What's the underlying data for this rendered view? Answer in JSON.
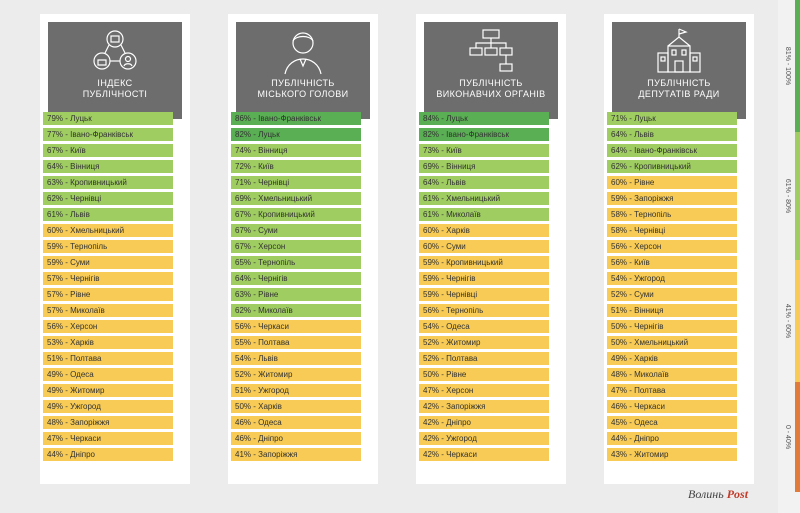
{
  "chart_data": [
    {
      "type": "table",
      "title": "ІНДЕКС\nПУБЛІЧНОСТІ",
      "rows": [
        {
          "label": "79% - Луцьк",
          "value": 79
        },
        {
          "label": "77% - Івано-Франківськ",
          "value": 77
        },
        {
          "label": "67% - Київ",
          "value": 67
        },
        {
          "label": "64% - Вінниця",
          "value": 64
        },
        {
          "label": "63% - Кропивницький",
          "value": 63
        },
        {
          "label": "62% - Чернівці",
          "value": 62
        },
        {
          "label": "61% - Львів",
          "value": 61
        },
        {
          "label": "60% - Хмельницький",
          "value": 60
        },
        {
          "label": "59% - Тернопіль",
          "value": 59
        },
        {
          "label": "59% - Суми",
          "value": 59
        },
        {
          "label": "57% - Чернігів",
          "value": 57
        },
        {
          "label": "57% - Рівне",
          "value": 57
        },
        {
          "label": "57% - Миколаїв",
          "value": 57
        },
        {
          "label": "56% - Херсон",
          "value": 56
        },
        {
          "label": "53% - Харків",
          "value": 53
        },
        {
          "label": "51% - Полтава",
          "value": 51
        },
        {
          "label": "49% - Одеса",
          "value": 49
        },
        {
          "label": "49% - Житомир",
          "value": 49
        },
        {
          "label": "49% - Ужгород",
          "value": 49
        },
        {
          "label": "48% - Запоріжжя",
          "value": 48
        },
        {
          "label": "47% - Черкаси",
          "value": 47
        },
        {
          "label": "44% - Дніпро",
          "value": 44
        }
      ]
    },
    {
      "type": "table",
      "title": "ПУБЛІЧНІСТЬ\nМІСЬКОГО ГОЛОВИ",
      "rows": [
        {
          "label": "86% - Івано-Франківськ",
          "value": 86
        },
        {
          "label": "82% - Луцьк",
          "value": 82
        },
        {
          "label": "74% - Вінниця",
          "value": 74
        },
        {
          "label": "72% - Київ",
          "value": 72
        },
        {
          "label": "71% - Чернівці",
          "value": 71
        },
        {
          "label": "69% - Хмельницький",
          "value": 69
        },
        {
          "label": "67% - Кропивницький",
          "value": 67
        },
        {
          "label": "67% - Суми",
          "value": 67
        },
        {
          "label": "67% - Херсон",
          "value": 67
        },
        {
          "label": "65% - Тернопіль",
          "value": 65
        },
        {
          "label": "64% - Чернігів",
          "value": 64
        },
        {
          "label": "63% - Рівне",
          "value": 63
        },
        {
          "label": "62% - Миколаїв",
          "value": 62
        },
        {
          "label": "56% - Черкаси",
          "value": 56
        },
        {
          "label": "55% - Полтава",
          "value": 55
        },
        {
          "label": "54% - Львів",
          "value": 54
        },
        {
          "label": "52% - Житомир",
          "value": 52
        },
        {
          "label": "51% - Ужгород",
          "value": 51
        },
        {
          "label": "50% - Харків",
          "value": 50
        },
        {
          "label": "46% - Одеса",
          "value": 46
        },
        {
          "label": "46% - Дніпро",
          "value": 46
        },
        {
          "label": "41% - Запоріжжя",
          "value": 41
        }
      ]
    },
    {
      "type": "table",
      "title": "ПУБЛІЧНІСТЬ\nВИКОНАВЧИХ ОРГАНІВ",
      "rows": [
        {
          "label": "84% - Луцьк",
          "value": 84
        },
        {
          "label": "82% - Івано-Франківськ",
          "value": 82
        },
        {
          "label": "73% - Київ",
          "value": 73
        },
        {
          "label": "69% - Вінниця",
          "value": 69
        },
        {
          "label": "64% - Львів",
          "value": 64
        },
        {
          "label": "61% - Хмельницький",
          "value": 61
        },
        {
          "label": "61% - Миколаїв",
          "value": 61
        },
        {
          "label": "60% - Харків",
          "value": 60
        },
        {
          "label": "60% - Суми",
          "value": 60
        },
        {
          "label": "59% - Кропивницький",
          "value": 59
        },
        {
          "label": "59% - Чернігів",
          "value": 59
        },
        {
          "label": "59% - Чернівці",
          "value": 59
        },
        {
          "label": "56% - Тернопіль",
          "value": 56
        },
        {
          "label": "54% - Одеса",
          "value": 54
        },
        {
          "label": "52% - Житомир",
          "value": 52
        },
        {
          "label": "52% - Полтава",
          "value": 52
        },
        {
          "label": "50% - Рівне",
          "value": 50
        },
        {
          "label": "47% - Херсон",
          "value": 47
        },
        {
          "label": "42% - Запоріжжя",
          "value": 42
        },
        {
          "label": "42% - Дніпро",
          "value": 42
        },
        {
          "label": "42% - Ужгород",
          "value": 42
        },
        {
          "label": "42% - Черкаси",
          "value": 42
        }
      ]
    },
    {
      "type": "table",
      "title": "ПУБЛІЧНІСТЬ\nДЕПУТАТІВ РАДИ",
      "rows": [
        {
          "label": "71% - Луцьк",
          "value": 71
        },
        {
          "label": "64% - Львів",
          "value": 64
        },
        {
          "label": "64% - Івано-Франківськ",
          "value": 64
        },
        {
          "label": "62% - Кропивницький",
          "value": 62
        },
        {
          "label": "60% - Рівне",
          "value": 60
        },
        {
          "label": "59% - Запоріжжя",
          "value": 59
        },
        {
          "label": "58% - Тернопіль",
          "value": 58
        },
        {
          "label": "58% - Чернівці",
          "value": 58
        },
        {
          "label": "56% - Херсон",
          "value": 56
        },
        {
          "label": "56% - Київ",
          "value": 56
        },
        {
          "label": "54% - Ужгород",
          "value": 54
        },
        {
          "label": "52% - Суми",
          "value": 52
        },
        {
          "label": "51% - Вінниця",
          "value": 51
        },
        {
          "label": "50% - Чернігів",
          "value": 50
        },
        {
          "label": "50% - Хмельницький",
          "value": 50
        },
        {
          "label": "49% - Харків",
          "value": 49
        },
        {
          "label": "48% - Миколаїв",
          "value": 48
        },
        {
          "label": "47% - Полтава",
          "value": 47
        },
        {
          "label": "46% - Черкаси",
          "value": 46
        },
        {
          "label": "45% - Одеса",
          "value": 45
        },
        {
          "label": "44% - Дніпро",
          "value": 44
        },
        {
          "label": "43% - Житомир",
          "value": 43
        }
      ]
    }
  ],
  "icons": [
    "network-icon",
    "person-icon",
    "org-chart-icon",
    "building-icon"
  ],
  "legend": [
    {
      "label": "81% - 100%",
      "color": "#5aaf54",
      "min": 81,
      "max": 100
    },
    {
      "label": "61% - 80%",
      "color": "#9fcd62",
      "min": 61,
      "max": 80
    },
    {
      "label": "41% - 60%",
      "color": "#f7cb56",
      "min": 41,
      "max": 60
    },
    {
      "label": "0 - 40%",
      "color": "#e07b39",
      "min": 0,
      "max": 40
    }
  ],
  "logo": {
    "main": "Волинь",
    "accent": "Post"
  },
  "colors": {
    "header": "#6d6d6d",
    "panel": "#ffffff",
    "background": "#ececec"
  }
}
